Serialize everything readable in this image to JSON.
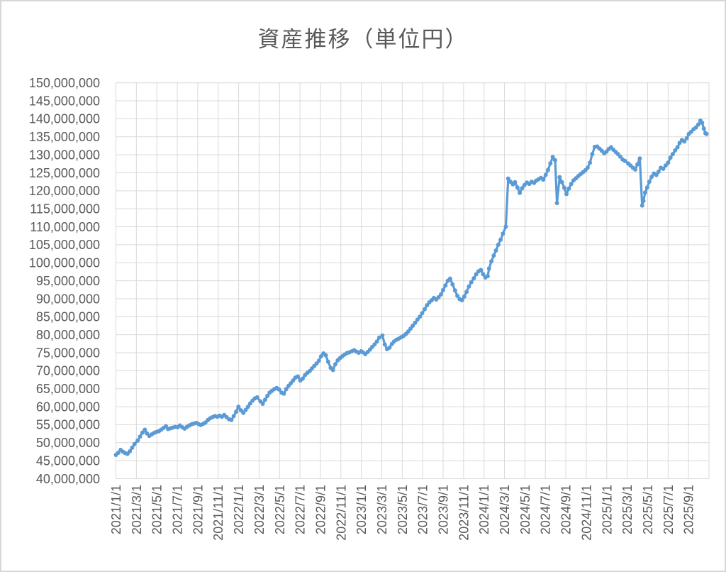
{
  "chart_data": {
    "type": "line",
    "title": "資産推移（単位円）",
    "background": "#FFFFFF",
    "grid": true,
    "legend": "none",
    "colors": {
      "line": "#5B9BD5",
      "grid": "#D9D9D9",
      "axis": "#BFBFBF",
      "text": "#595959",
      "border": "#D7D7D7"
    },
    "y_axis": {
      "min": 40000000,
      "max": 150000000,
      "step": 5000000,
      "format": "comma"
    },
    "x_axis": {
      "start": "2021/1/1",
      "end": "2025/11/1",
      "tick_interval": "2 months",
      "label_rotation": -90,
      "labels": [
        "2021/1/1",
        "2021/3/1",
        "2021/5/1",
        "2021/7/1",
        "2021/9/1",
        "2021/11/1",
        "2022/1/1",
        "2022/3/1",
        "2022/5/1",
        "2022/7/1",
        "2022/9/1",
        "2022/11/1",
        "2023/1/1",
        "2023/3/1",
        "2023/5/1",
        "2023/7/1",
        "2023/9/1",
        "2023/11/1",
        "2024/1/1",
        "2024/3/1",
        "2024/5/1",
        "2024/7/1",
        "2024/9/1",
        "2024/11/1",
        "2025/1/1",
        "2025/3/1",
        "2025/5/1",
        "2025/7/1",
        "2025/9/1"
      ]
    },
    "series": [
      {
        "name": "資産",
        "marker": "circle",
        "points": [
          [
            "2021/1/1",
            46600000
          ],
          [
            "2021/1/8",
            47200000
          ],
          [
            "2021/1/15",
            48000000
          ],
          [
            "2021/1/22",
            47500000
          ],
          [
            "2021/1/29",
            47100000
          ],
          [
            "2021/2/5",
            46900000
          ],
          [
            "2021/2/12",
            47600000
          ],
          [
            "2021/2/19",
            48600000
          ],
          [
            "2021/2/26",
            49600000
          ],
          [
            "2021/3/5",
            50600000
          ],
          [
            "2021/3/12",
            51700000
          ],
          [
            "2021/3/19",
            52800000
          ],
          [
            "2021/3/26",
            53600000
          ],
          [
            "2021/4/2",
            52600000
          ],
          [
            "2021/4/9",
            51900000
          ],
          [
            "2021/4/16",
            52300000
          ],
          [
            "2021/4/23",
            52700000
          ],
          [
            "2021/4/30",
            53000000
          ],
          [
            "2021/5/7",
            53200000
          ],
          [
            "2021/5/14",
            53600000
          ],
          [
            "2021/5/21",
            54100000
          ],
          [
            "2021/5/28",
            54600000
          ],
          [
            "2021/6/4",
            53800000
          ],
          [
            "2021/6/11",
            54000000
          ],
          [
            "2021/6/18",
            54200000
          ],
          [
            "2021/6/25",
            54400000
          ],
          [
            "2021/7/2",
            54300000
          ],
          [
            "2021/7/9",
            54800000
          ],
          [
            "2021/7/16",
            54300000
          ],
          [
            "2021/7/23",
            53900000
          ],
          [
            "2021/7/30",
            54400000
          ],
          [
            "2021/8/6",
            54800000
          ],
          [
            "2021/8/13",
            55100000
          ],
          [
            "2021/8/20",
            55300000
          ],
          [
            "2021/8/27",
            55500000
          ],
          [
            "2021/9/3",
            55200000
          ],
          [
            "2021/9/10",
            54900000
          ],
          [
            "2021/9/17",
            55200000
          ],
          [
            "2021/9/24",
            55600000
          ],
          [
            "2021/10/1",
            56300000
          ],
          [
            "2021/10/8",
            56800000
          ],
          [
            "2021/10/15",
            57100000
          ],
          [
            "2021/10/22",
            57400000
          ],
          [
            "2021/10/29",
            57200000
          ],
          [
            "2021/11/5",
            57500000
          ],
          [
            "2021/11/12",
            57200000
          ],
          [
            "2021/11/19",
            57700000
          ],
          [
            "2021/11/26",
            57100000
          ],
          [
            "2021/12/3",
            56500000
          ],
          [
            "2021/12/10",
            56300000
          ],
          [
            "2021/12/17",
            57400000
          ],
          [
            "2021/12/24",
            58600000
          ],
          [
            "2021/12/31",
            60000000
          ],
          [
            "2022/1/8",
            59000000
          ],
          [
            "2022/1/15",
            58300000
          ],
          [
            "2022/1/22",
            59100000
          ],
          [
            "2022/1/29",
            60000000
          ],
          [
            "2022/2/5",
            60900000
          ],
          [
            "2022/2/12",
            61700000
          ],
          [
            "2022/2/19",
            62300000
          ],
          [
            "2022/2/26",
            62600000
          ],
          [
            "2022/3/5",
            61500000
          ],
          [
            "2022/3/12",
            60800000
          ],
          [
            "2022/3/19",
            61900000
          ],
          [
            "2022/3/26",
            63000000
          ],
          [
            "2022/4/2",
            63900000
          ],
          [
            "2022/4/9",
            64400000
          ],
          [
            "2022/4/16",
            64900000
          ],
          [
            "2022/4/23",
            65200000
          ],
          [
            "2022/4/30",
            64800000
          ],
          [
            "2022/5/7",
            63900000
          ],
          [
            "2022/5/14",
            63600000
          ],
          [
            "2022/5/21",
            64900000
          ],
          [
            "2022/5/28",
            65800000
          ],
          [
            "2022/6/4",
            66500000
          ],
          [
            "2022/6/11",
            67300000
          ],
          [
            "2022/6/18",
            68100000
          ],
          [
            "2022/6/25",
            68400000
          ],
          [
            "2022/7/2",
            67300000
          ],
          [
            "2022/7/9",
            67800000
          ],
          [
            "2022/7/16",
            68800000
          ],
          [
            "2022/7/23",
            69400000
          ],
          [
            "2022/7/30",
            69900000
          ],
          [
            "2022/8/6",
            70600000
          ],
          [
            "2022/8/13",
            71300000
          ],
          [
            "2022/8/20",
            72000000
          ],
          [
            "2022/8/27",
            72800000
          ],
          [
            "2022/9/3",
            74000000
          ],
          [
            "2022/9/10",
            74800000
          ],
          [
            "2022/9/17",
            74300000
          ],
          [
            "2022/9/24",
            72500000
          ],
          [
            "2022/10/1",
            70800000
          ],
          [
            "2022/10/8",
            70200000
          ],
          [
            "2022/10/15",
            71800000
          ],
          [
            "2022/10/22",
            72900000
          ],
          [
            "2022/10/29",
            73500000
          ],
          [
            "2022/11/5",
            74000000
          ],
          [
            "2022/11/12",
            74500000
          ],
          [
            "2022/11/19",
            74900000
          ],
          [
            "2022/11/26",
            75100000
          ],
          [
            "2022/12/3",
            75400000
          ],
          [
            "2022/12/10",
            75700000
          ],
          [
            "2022/12/17",
            75300000
          ],
          [
            "2022/12/24",
            75000000
          ],
          [
            "2022/12/31",
            75400000
          ],
          [
            "2023/1/6",
            75100000
          ],
          [
            "2023/1/13",
            74600000
          ],
          [
            "2023/1/20",
            75200000
          ],
          [
            "2023/1/27",
            75900000
          ],
          [
            "2023/2/3",
            76600000
          ],
          [
            "2023/2/10",
            77300000
          ],
          [
            "2023/2/17",
            78100000
          ],
          [
            "2023/2/24",
            79200000
          ],
          [
            "2023/3/3",
            79800000
          ],
          [
            "2023/3/10",
            77300000
          ],
          [
            "2023/3/17",
            76000000
          ],
          [
            "2023/3/24",
            76400000
          ],
          [
            "2023/3/31",
            77400000
          ],
          [
            "2023/4/7",
            78100000
          ],
          [
            "2023/4/14",
            78600000
          ],
          [
            "2023/4/21",
            78900000
          ],
          [
            "2023/4/28",
            79300000
          ],
          [
            "2023/5/5",
            79700000
          ],
          [
            "2023/5/12",
            80200000
          ],
          [
            "2023/5/19",
            80900000
          ],
          [
            "2023/5/26",
            81700000
          ],
          [
            "2023/6/2",
            82500000
          ],
          [
            "2023/6/9",
            83300000
          ],
          [
            "2023/6/16",
            84200000
          ],
          [
            "2023/6/23",
            85000000
          ],
          [
            "2023/6/30",
            86000000
          ],
          [
            "2023/7/7",
            87100000
          ],
          [
            "2023/7/14",
            88200000
          ],
          [
            "2023/7/21",
            89000000
          ],
          [
            "2023/7/28",
            89600000
          ],
          [
            "2023/8/4",
            90200000
          ],
          [
            "2023/8/11",
            89800000
          ],
          [
            "2023/8/18",
            90400000
          ],
          [
            "2023/8/25",
            91200000
          ],
          [
            "2023/9/1",
            92400000
          ],
          [
            "2023/9/8",
            93700000
          ],
          [
            "2023/9/15",
            95000000
          ],
          [
            "2023/9/22",
            95600000
          ],
          [
            "2023/9/29",
            94000000
          ],
          [
            "2023/10/6",
            92300000
          ],
          [
            "2023/10/13",
            90800000
          ],
          [
            "2023/10/20",
            89900000
          ],
          [
            "2023/10/27",
            89600000
          ],
          [
            "2023/11/3",
            90600000
          ],
          [
            "2023/11/10",
            91900000
          ],
          [
            "2023/11/17",
            93400000
          ],
          [
            "2023/11/24",
            94600000
          ],
          [
            "2023/12/1",
            95700000
          ],
          [
            "2023/12/8",
            96800000
          ],
          [
            "2023/12/15",
            97600000
          ],
          [
            "2023/12/22",
            98000000
          ],
          [
            "2023/12/29",
            96800000
          ],
          [
            "2024/1/5",
            95900000
          ],
          [
            "2024/1/12",
            96300000
          ],
          [
            "2024/1/16",
            98400000
          ],
          [
            "2024/1/23",
            100400000
          ],
          [
            "2024/1/30",
            102000000
          ],
          [
            "2024/2/6",
            103400000
          ],
          [
            "2024/2/13",
            105000000
          ],
          [
            "2024/2/20",
            106400000
          ],
          [
            "2024/2/27",
            108100000
          ],
          [
            "2024/3/5",
            110000000
          ],
          [
            "2024/3/12",
            123400000
          ],
          [
            "2024/3/19",
            122500000
          ],
          [
            "2024/3/26",
            121800000
          ],
          [
            "2024/4/2",
            122400000
          ],
          [
            "2024/4/9",
            120900000
          ],
          [
            "2024/4/16",
            119400000
          ],
          [
            "2024/4/23",
            120700000
          ],
          [
            "2024/4/30",
            121600000
          ],
          [
            "2024/5/7",
            122300000
          ],
          [
            "2024/5/14",
            121900000
          ],
          [
            "2024/5/21",
            122500000
          ],
          [
            "2024/5/28",
            122200000
          ],
          [
            "2024/6/4",
            122800000
          ],
          [
            "2024/6/11",
            123200000
          ],
          [
            "2024/6/18",
            123600000
          ],
          [
            "2024/6/25",
            123100000
          ],
          [
            "2024/7/2",
            124400000
          ],
          [
            "2024/7/9",
            125800000
          ],
          [
            "2024/7/16",
            127600000
          ],
          [
            "2024/7/23",
            129400000
          ],
          [
            "2024/7/30",
            128500000
          ],
          [
            "2024/8/5",
            116600000
          ],
          [
            "2024/8/13",
            123800000
          ],
          [
            "2024/8/20",
            122400000
          ],
          [
            "2024/8/27",
            120800000
          ],
          [
            "2024/9/3",
            119100000
          ],
          [
            "2024/9/10",
            120600000
          ],
          [
            "2024/9/17",
            121900000
          ],
          [
            "2024/9/24",
            122900000
          ],
          [
            "2024/10/1",
            123500000
          ],
          [
            "2024/10/8",
            124100000
          ],
          [
            "2024/10/15",
            124700000
          ],
          [
            "2024/10/22",
            125200000
          ],
          [
            "2024/10/29",
            125700000
          ],
          [
            "2024/11/5",
            126400000
          ],
          [
            "2024/11/12",
            127800000
          ],
          [
            "2024/11/19",
            130200000
          ],
          [
            "2024/11/26",
            132200000
          ],
          [
            "2024/12/3",
            132300000
          ],
          [
            "2024/12/10",
            131700000
          ],
          [
            "2024/12/17",
            131100000
          ],
          [
            "2024/12/24",
            130400000
          ],
          [
            "2024/12/31",
            130900000
          ],
          [
            "2025/1/7",
            131600000
          ],
          [
            "2025/1/14",
            132100000
          ],
          [
            "2025/1/21",
            131400000
          ],
          [
            "2025/1/28",
            130800000
          ],
          [
            "2025/2/4",
            130200000
          ],
          [
            "2025/2/11",
            129500000
          ],
          [
            "2025/2/18",
            128700000
          ],
          [
            "2025/2/25",
            128300000
          ],
          [
            "2025/3/4",
            127600000
          ],
          [
            "2025/3/11",
            127000000
          ],
          [
            "2025/3/18",
            126400000
          ],
          [
            "2025/3/25",
            125900000
          ],
          [
            "2025/4/1",
            127300000
          ],
          [
            "2025/4/8",
            129000000
          ],
          [
            "2025/4/15",
            115900000
          ],
          [
            "2025/4/19",
            117200000
          ],
          [
            "2025/4/24",
            119500000
          ],
          [
            "2025/4/30",
            120900000
          ],
          [
            "2025/5/6",
            122500000
          ],
          [
            "2025/5/13",
            123900000
          ],
          [
            "2025/5/20",
            124800000
          ],
          [
            "2025/5/27",
            124400000
          ],
          [
            "2025/6/3",
            125300000
          ],
          [
            "2025/6/10",
            126400000
          ],
          [
            "2025/6/17",
            126100000
          ],
          [
            "2025/6/24",
            127000000
          ],
          [
            "2025/7/1",
            127800000
          ],
          [
            "2025/7/8",
            129200000
          ],
          [
            "2025/7/15",
            130200000
          ],
          [
            "2025/7/22",
            131200000
          ],
          [
            "2025/7/29",
            132100000
          ],
          [
            "2025/8/5",
            133300000
          ],
          [
            "2025/8/12",
            134100000
          ],
          [
            "2025/8/19",
            133700000
          ],
          [
            "2025/8/26",
            134600000
          ],
          [
            "2025/9/2",
            135800000
          ],
          [
            "2025/9/9",
            136400000
          ],
          [
            "2025/9/16",
            137100000
          ],
          [
            "2025/9/23",
            137600000
          ],
          [
            "2025/9/30",
            138400000
          ],
          [
            "2025/10/6",
            139500000
          ],
          [
            "2025/10/11",
            138900000
          ],
          [
            "2025/10/16",
            137300000
          ],
          [
            "2025/10/21",
            136000000
          ],
          [
            "2025/10/24",
            135800000
          ]
        ]
      }
    ]
  }
}
